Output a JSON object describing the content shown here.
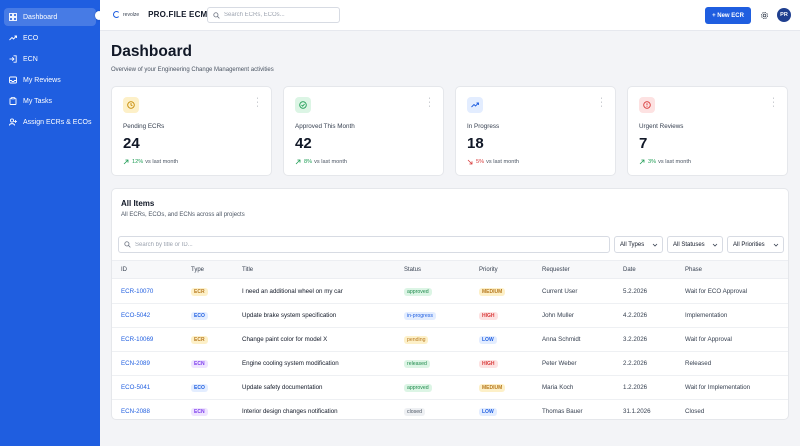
{
  "sidebar": {
    "items": [
      {
        "label": "Dashboard",
        "icon": "grid-icon",
        "active": true
      },
      {
        "label": "ECO",
        "icon": "trend-icon",
        "active": false
      },
      {
        "label": "ECN",
        "icon": "login-icon",
        "active": false
      },
      {
        "label": "My Reviews",
        "icon": "inbox-icon",
        "active": false
      },
      {
        "label": "My Tasks",
        "icon": "clipboard-icon",
        "active": false
      },
      {
        "label": "Assign ECRs & ECOs",
        "icon": "user-plus-icon",
        "active": false
      }
    ]
  },
  "header": {
    "brand_small": "revolze",
    "brand_name": "PRO.FILE ECM",
    "search_placeholder": "Search ECRs, ECOs...",
    "new_button": "+ New ECR",
    "avatar_initials": "PR"
  },
  "page": {
    "title": "Dashboard",
    "subtitle": "Overview of your Engineering Change Management activities"
  },
  "stats": [
    {
      "label": "Pending ECRs",
      "value": "24",
      "pct": "12%",
      "suffix": "vs last month",
      "direction": "up",
      "icon": "clock-icon",
      "icon_bg": "#fdf0c8",
      "icon_color": "#c58a05"
    },
    {
      "label": "Approved This Month",
      "value": "42",
      "pct": "8%",
      "suffix": "vs last month",
      "direction": "up",
      "icon": "check-circle-icon",
      "icon_bg": "#dcf5e5",
      "icon_color": "#1f9d55"
    },
    {
      "label": "In Progress",
      "value": "18",
      "pct": "5%",
      "suffix": "vs last month",
      "direction": "down",
      "icon": "trend-icon",
      "icon_bg": "#e3edff",
      "icon_color": "#1f5ee0"
    },
    {
      "label": "Urgent Reviews",
      "value": "7",
      "pct": "3%",
      "suffix": "vs last month",
      "direction": "up",
      "icon": "alert-circle-icon",
      "icon_bg": "#fde2e2",
      "icon_color": "#d83a3a"
    }
  ],
  "items_panel": {
    "title": "All Items",
    "subtitle": "All ECRs, ECOs, and ECNs across all projects",
    "search_placeholder": "Search by title or ID...",
    "filters": [
      "All Types",
      "All Statuses",
      "All Priorities"
    ],
    "columns": [
      "ID",
      "Type",
      "Title",
      "Status",
      "Priority",
      "Requester",
      "Date",
      "Phase"
    ],
    "rows": [
      {
        "id": "ECR-10070",
        "type": "ECR",
        "title": "I need an additional wheel on my car",
        "status": "approved",
        "priority": "MEDIUM",
        "requester": "Current User",
        "date": "5.2.2026",
        "phase": "Wait for ECO Approval"
      },
      {
        "id": "ECO-5042",
        "type": "ECO",
        "title": "Update brake system specification",
        "status": "in-progress",
        "priority": "HIGH",
        "requester": "John Muller",
        "date": "4.2.2026",
        "phase": "Implementation"
      },
      {
        "id": "ECR-10069",
        "type": "ECR",
        "title": "Change paint color for model X",
        "status": "pending",
        "priority": "LOW",
        "requester": "Anna Schmidt",
        "date": "3.2.2026",
        "phase": "Wait for Approval"
      },
      {
        "id": "ECN-2089",
        "type": "ECN",
        "title": "Engine cooling system modification",
        "status": "released",
        "priority": "HIGH",
        "requester": "Peter Weber",
        "date": "2.2.2026",
        "phase": "Released"
      },
      {
        "id": "ECO-5041",
        "type": "ECO",
        "title": "Update safety documentation",
        "status": "approved",
        "priority": "MEDIUM",
        "requester": "Maria Koch",
        "date": "1.2.2026",
        "phase": "Wait for Implementation"
      },
      {
        "id": "ECN-2088",
        "type": "ECN",
        "title": "Interior design changes notification",
        "status": "closed",
        "priority": "LOW",
        "requester": "Thomas Bauer",
        "date": "31.1.2026",
        "phase": "Closed"
      }
    ]
  },
  "colors": {
    "brand": "#1f5ee0",
    "type_ECR": [
      "#fdf0c8",
      "#b7791f"
    ],
    "type_ECO": [
      "#e3edff",
      "#1f5ee0"
    ],
    "type_ECN": [
      "#efe4ff",
      "#7c3aed"
    ],
    "status_approved": [
      "#dcf5e5",
      "#1f8a4c"
    ],
    "status_in-progress": [
      "#e3edff",
      "#1f5ee0"
    ],
    "status_pending": [
      "#fdf0c8",
      "#b7791f"
    ],
    "status_released": [
      "#dcf5e5",
      "#1f8a4c"
    ],
    "status_closed": [
      "#eef0f3",
      "#4b5563"
    ],
    "priority_MEDIUM": [
      "#fdf0c8",
      "#b7791f"
    ],
    "priority_HIGH": [
      "#fde2e2",
      "#d83a3a"
    ],
    "priority_LOW": [
      "#e3edff",
      "#1f5ee0"
    ]
  }
}
